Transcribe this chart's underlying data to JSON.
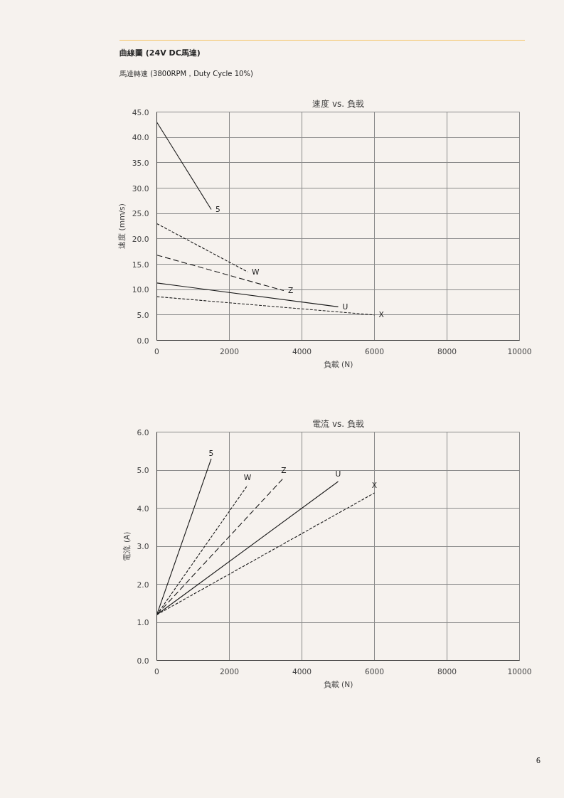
{
  "chart_data": [
    {
      "type": "line",
      "title": "速度 vs. 負載",
      "xlabel": "負載 (N)",
      "ylabel": "速度 (mm/s)",
      "annotations": [
        "曲線圖 (24V DC馬達)",
        "馬達轉速 (3800RPM，Duty Cycle 10%)"
      ],
      "xlim": [
        0,
        10000
      ],
      "xticks": [
        0,
        2000,
        4000,
        6000,
        8000,
        10000
      ],
      "ylim": [
        0,
        45
      ],
      "yticks": [
        {
          "value": 0,
          "label": "0.0"
        },
        {
          "value": 5,
          "label": "5.0"
        },
        {
          "value": 10,
          "label": "10.0"
        },
        {
          "value": 15,
          "label": "15.0"
        },
        {
          "value": 20,
          "label": "20.0"
        },
        {
          "value": 25,
          "label": "25.0"
        },
        {
          "value": 30,
          "label": "30.0"
        },
        {
          "value": 35,
          "label": "35.0"
        },
        {
          "value": 40,
          "label": "40.0"
        },
        {
          "value": 45,
          "label": "45.0"
        }
      ],
      "grid": true,
      "legend": false,
      "series": [
        {
          "name": "5",
          "color": "#1a1a1a",
          "line_style": "solid",
          "x": [
            0,
            1500
          ],
          "values": [
            43.0,
            25.8
          ]
        },
        {
          "name": "W",
          "color": "#1a1a1a",
          "line_style": "dotted",
          "x": [
            0,
            2500
          ],
          "values": [
            23.0,
            13.5
          ]
        },
        {
          "name": "Z",
          "color": "#1a1a1a",
          "line_style": "dashed",
          "x": [
            0,
            3500
          ],
          "values": [
            16.8,
            9.8
          ]
        },
        {
          "name": "U",
          "color": "#1a1a1a",
          "line_style": "solid",
          "x": [
            0,
            5000
          ],
          "values": [
            11.3,
            6.6
          ]
        },
        {
          "name": "X",
          "color": "#1a1a1a",
          "line_style": "dotted",
          "x": [
            0,
            6000
          ],
          "values": [
            8.6,
            5.0
          ]
        }
      ]
    },
    {
      "type": "line",
      "title": "電流 vs. 負載",
      "xlabel": "負載 (N)",
      "ylabel": "電流 (A)",
      "annotations": [
        "6"
      ],
      "xlim": [
        0,
        10000
      ],
      "xticks": [
        0,
        2000,
        4000,
        6000,
        8000,
        10000
      ],
      "ylim": [
        0,
        6
      ],
      "yticks": [
        {
          "value": 0,
          "label": "0.0"
        },
        {
          "value": 1,
          "label": "1.0"
        },
        {
          "value": 2,
          "label": "2.0"
        },
        {
          "value": 3,
          "label": "3.0"
        },
        {
          "value": 4,
          "label": "4.0"
        },
        {
          "value": 5,
          "label": "5.0"
        },
        {
          "value": 6,
          "label": "6.0"
        }
      ],
      "grid": true,
      "legend": false,
      "series": [
        {
          "name": "5",
          "color": "#1a1a1a",
          "line_style": "solid",
          "x": [
            0,
            1500
          ],
          "values": [
            1.2,
            5.3
          ]
        },
        {
          "name": "W",
          "color": "#1a1a1a",
          "line_style": "dotted",
          "x": [
            0,
            2500
          ],
          "values": [
            1.2,
            4.6
          ]
        },
        {
          "name": "Z",
          "color": "#1a1a1a",
          "line_style": "dashed",
          "x": [
            0,
            3500
          ],
          "values": [
            1.2,
            4.8
          ]
        },
        {
          "name": "U",
          "color": "#1a1a1a",
          "line_style": "solid",
          "x": [
            0,
            5000
          ],
          "values": [
            1.2,
            4.7
          ]
        },
        {
          "name": "X",
          "color": "#1a1a1a",
          "line_style": "dotted",
          "x": [
            0,
            6000
          ],
          "values": [
            1.2,
            4.4
          ]
        }
      ]
    }
  ]
}
